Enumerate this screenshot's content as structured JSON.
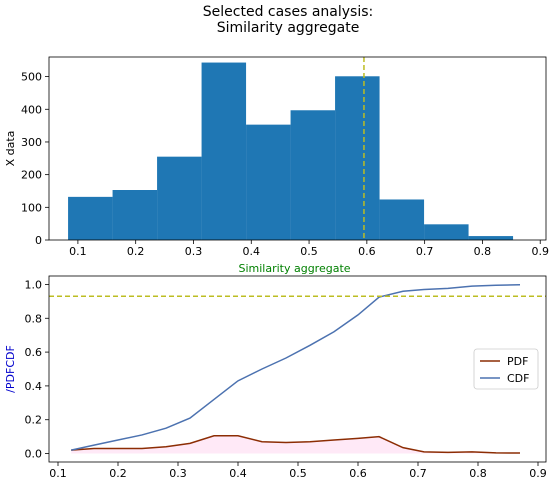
{
  "title": {
    "line1": "Selected cases analysis:",
    "line2": "Similarity aggregate"
  },
  "colors": {
    "bars": "#1f77b4",
    "cdf": "#4c72b0",
    "pdf": "#8c2d04",
    "refline": "#bcbd22",
    "xlabel": "#008000",
    "ylabel2": "#0000cc",
    "pdf_fill": "#ffc0e8"
  },
  "chart_data": [
    {
      "type": "bar",
      "subtype": "histogram",
      "xlabel": "Similarity aggregate",
      "ylabel": "X data",
      "xlim": [
        0.05,
        0.91
      ],
      "ylim": [
        0,
        560
      ],
      "xticks": [
        "0.1",
        "0.2",
        "0.3",
        "0.4",
        "0.5",
        "0.6",
        "0.7",
        "0.8",
        "0.9"
      ],
      "yticks": [
        "0",
        "100",
        "200",
        "300",
        "400",
        "500"
      ],
      "bin_edges": [
        0.083,
        0.16,
        0.237,
        0.314,
        0.391,
        0.468,
        0.545,
        0.622,
        0.699,
        0.776,
        0.853
      ],
      "values": [
        132,
        153,
        255,
        543,
        353,
        397,
        501,
        124,
        48,
        12
      ],
      "vline": 0.595
    },
    {
      "type": "line",
      "ylabel": "/PDFCDF",
      "xlim": [
        0.1,
        0.9
      ],
      "ylim": [
        -0.05,
        1.05
      ],
      "xticks": [
        "0.1",
        "0.2",
        "0.3",
        "0.4",
        "0.5",
        "0.6",
        "0.7",
        "0.8",
        "0.9"
      ],
      "yticks": [
        "0.0",
        "0.2",
        "0.4",
        "0.6",
        "0.8",
        "1.0"
      ],
      "hline": 0.93,
      "legend_position": "center-right",
      "series": [
        {
          "name": "PDF",
          "x": [
            0.122,
            0.16,
            0.2,
            0.24,
            0.28,
            0.32,
            0.36,
            0.4,
            0.44,
            0.48,
            0.52,
            0.56,
            0.6,
            0.635,
            0.675,
            0.71,
            0.75,
            0.79,
            0.83,
            0.87
          ],
          "y": [
            0.02,
            0.03,
            0.03,
            0.03,
            0.04,
            0.06,
            0.105,
            0.105,
            0.07,
            0.065,
            0.07,
            0.08,
            0.09,
            0.1,
            0.035,
            0.01,
            0.007,
            0.01,
            0.004,
            0.003
          ]
        },
        {
          "name": "CDF",
          "x": [
            0.122,
            0.16,
            0.2,
            0.24,
            0.28,
            0.32,
            0.36,
            0.4,
            0.44,
            0.48,
            0.52,
            0.56,
            0.6,
            0.635,
            0.675,
            0.71,
            0.75,
            0.79,
            0.83,
            0.87
          ],
          "y": [
            0.02,
            0.05,
            0.08,
            0.11,
            0.15,
            0.21,
            0.32,
            0.43,
            0.5,
            0.565,
            0.64,
            0.72,
            0.82,
            0.925,
            0.96,
            0.97,
            0.977,
            0.99,
            0.995,
            0.998
          ]
        }
      ]
    }
  ]
}
